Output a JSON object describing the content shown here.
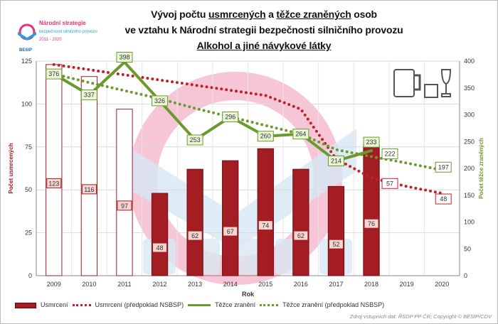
{
  "title": {
    "line1_a": "Vývoj počtu ",
    "line1_b": "usmrcených",
    "line1_c": " a ",
    "line1_d": "těžce zraněných",
    "line1_e": " osob",
    "line2": "ve vztahu k Národní strategii bezpečnosti silničního provozu",
    "line3": "Alkohol a jiné návykové látky"
  },
  "logo": {
    "name": "Národní strategie",
    "sub": "bezpečnosti silničního provozu",
    "years": "2011 - 2020",
    "brand": "BESIP"
  },
  "watermark": "BESIP",
  "source": "Zdroj vstupních dat: ŘSDP PP ČR; Copyright © BESIP/CDV",
  "chart_data": {
    "type": "bar+line",
    "xlabel": "Rok",
    "ylabel": "Počet usmrcených",
    "y2label": "Počet těžce zraněných",
    "ylim": [
      0,
      125
    ],
    "y2lim": [
      0,
      400
    ],
    "yticks": [
      0,
      25,
      50,
      75,
      100,
      125
    ],
    "y2ticks": [
      0,
      50,
      100,
      150,
      200,
      250,
      300,
      350,
      400
    ],
    "categories": [
      "2009",
      "2010",
      "2011",
      "2012",
      "2013",
      "2014",
      "2015",
      "2016",
      "2017",
      "2018",
      "2019",
      "2020"
    ],
    "grid": true,
    "legend": "bottom",
    "series": [
      {
        "name": "Usmrcení",
        "kind": "bar",
        "axis": "left",
        "color": "#a31d22",
        "values": [
          123,
          116,
          97,
          48,
          62,
          67,
          74,
          62,
          52,
          76,
          null,
          null
        ],
        "hollow_until": "2011"
      },
      {
        "name": "Usmrcení (předpoklad NSBSP)",
        "kind": "dotted",
        "axis": "left",
        "color": "#c0202a",
        "values": [
          123,
          120,
          117,
          114,
          111,
          108,
          105,
          97,
          68,
          57,
          52,
          48
        ],
        "labeled": [
          "2018",
          "2020"
        ]
      },
      {
        "name": "Těžce zranění",
        "kind": "line",
        "axis": "right",
        "color": "#6a9a2e",
        "values": [
          376,
          337,
          398,
          326,
          253,
          296,
          260,
          264,
          214,
          233,
          null,
          null
        ]
      },
      {
        "name": "Těžce zranění (předpoklad NSBSP)",
        "kind": "dotted",
        "axis": "right",
        "color": "#6a9a2e",
        "values": [
          376,
          360,
          345,
          330,
          312,
          296,
          280,
          264,
          235,
          222,
          210,
          197
        ],
        "labeled": [
          "2018",
          "2020"
        ]
      }
    ]
  }
}
